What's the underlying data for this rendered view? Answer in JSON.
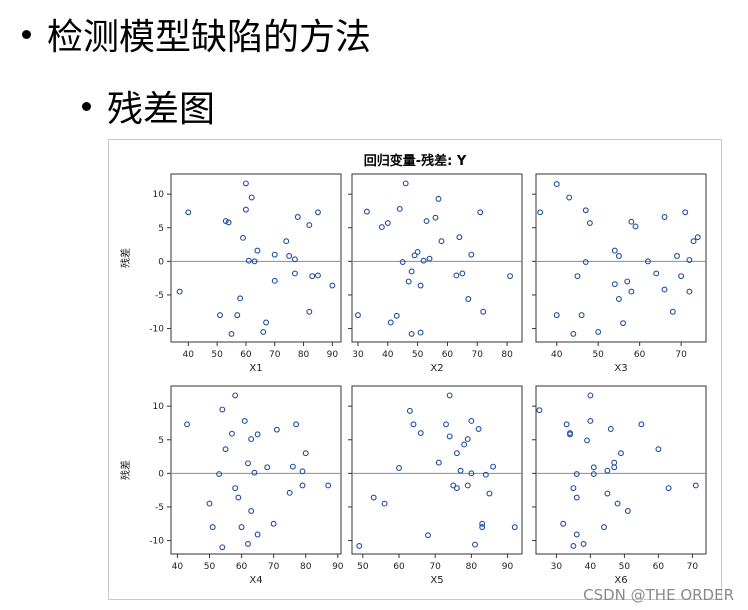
{
  "slide": {
    "bullet_1": "检测模型缺陷的方法",
    "bullet_2": "残差图"
  },
  "watermark": "CSDN @THE ORDER",
  "chart_data": {
    "type": "scatter",
    "title": "回归变量-残差: Y",
    "ylabel": "残差",
    "ylim": [
      -12,
      13
    ],
    "yticks": [
      -10,
      -5,
      0,
      5,
      10
    ],
    "reference_line_y": 0,
    "grid": false,
    "marker_color": "#1f4fa0",
    "refline_color": "#8c8c8c",
    "panels": [
      {
        "xlabel": "X1",
        "xlim": [
          34,
          93
        ],
        "xticks": [
          40,
          50,
          60,
          70,
          80,
          90
        ],
        "points": [
          [
            37,
            -4.5
          ],
          [
            40,
            7.3
          ],
          [
            51,
            -8
          ],
          [
            53,
            6
          ],
          [
            54,
            5.8
          ],
          [
            55,
            -10.8
          ],
          [
            57,
            -8
          ],
          [
            58,
            -5.5
          ],
          [
            59,
            3.5
          ],
          [
            60,
            11.6
          ],
          [
            60,
            7.7
          ],
          [
            61,
            0.1
          ],
          [
            62,
            9.5
          ],
          [
            63,
            0
          ],
          [
            64,
            1.6
          ],
          [
            66,
            -10.5
          ],
          [
            67,
            -9.1
          ],
          [
            70,
            1
          ],
          [
            70,
            -2.9
          ],
          [
            74,
            3
          ],
          [
            75,
            0.8
          ],
          [
            77,
            -1.8
          ],
          [
            77,
            0.3
          ],
          [
            78,
            6.6
          ],
          [
            82,
            5.4
          ],
          [
            83,
            -2.2
          ],
          [
            82,
            -7.5
          ],
          [
            85,
            -2.1
          ],
          [
            85,
            7.3
          ],
          [
            90,
            -3.6
          ]
        ]
      },
      {
        "xlabel": "X2",
        "xlim": [
          28,
          85
        ],
        "xticks": [
          30,
          40,
          50,
          60,
          70,
          80
        ],
        "points": [
          [
            30,
            -8
          ],
          [
            33,
            7.4
          ],
          [
            38,
            5.1
          ],
          [
            40,
            5.7
          ],
          [
            41,
            -9.1
          ],
          [
            43,
            -8.1
          ],
          [
            44,
            7.8
          ],
          [
            45,
            -0.1
          ],
          [
            46,
            11.6
          ],
          [
            47,
            -3
          ],
          [
            48,
            -10.8
          ],
          [
            48,
            -1.5
          ],
          [
            49,
            0.9
          ],
          [
            50,
            1.4
          ],
          [
            51,
            -3.6
          ],
          [
            52,
            0.1
          ],
          [
            53,
            6
          ],
          [
            54,
            0.4
          ],
          [
            56,
            6.5
          ],
          [
            57,
            9.3
          ],
          [
            58,
            3
          ],
          [
            63,
            -2.1
          ],
          [
            64,
            3.6
          ],
          [
            65,
            -1.8
          ],
          [
            67,
            -5.6
          ],
          [
            68,
            1
          ],
          [
            71,
            7.3
          ],
          [
            72,
            -7.5
          ],
          [
            81,
            -2.2
          ],
          [
            51,
            -10.6
          ]
        ]
      },
      {
        "xlabel": "X3",
        "xlim": [
          35,
          76
        ],
        "xticks": [
          40,
          50,
          60,
          70
        ],
        "points": [
          [
            36,
            7.3
          ],
          [
            40,
            11.5
          ],
          [
            40,
            -8
          ],
          [
            43,
            9.5
          ],
          [
            44,
            -10.8
          ],
          [
            45,
            -2.2
          ],
          [
            46,
            -8
          ],
          [
            47,
            7.6
          ],
          [
            47,
            -0.1
          ],
          [
            48,
            5.7
          ],
          [
            50,
            -10.5
          ],
          [
            54,
            -3.4
          ],
          [
            54,
            1.6
          ],
          [
            55,
            -5.6
          ],
          [
            55,
            0.8
          ],
          [
            56,
            -9.2
          ],
          [
            57,
            -3
          ],
          [
            58,
            5.9
          ],
          [
            59,
            5.2
          ],
          [
            62,
            0
          ],
          [
            64,
            -1.8
          ],
          [
            66,
            -4.2
          ],
          [
            66,
            6.6
          ],
          [
            68,
            -7.5
          ],
          [
            69,
            0.8
          ],
          [
            70,
            -2.2
          ],
          [
            71,
            7.3
          ],
          [
            72,
            -4.5
          ],
          [
            72,
            0.2
          ],
          [
            73,
            3
          ],
          [
            74,
            3.6
          ],
          [
            58,
            -4.5
          ]
        ]
      },
      {
        "xlabel": "X4",
        "xlim": [
          38,
          91
        ],
        "xticks": [
          40,
          50,
          60,
          70,
          80,
          90
        ],
        "points": [
          [
            43,
            7.3
          ],
          [
            50,
            -4.5
          ],
          [
            51,
            -8
          ],
          [
            53,
            -0.1
          ],
          [
            54,
            -11
          ],
          [
            54,
            9.5
          ],
          [
            55,
            3.6
          ],
          [
            57,
            5.9
          ],
          [
            58,
            11.6
          ],
          [
            58,
            -2.2
          ],
          [
            59,
            -3.6
          ],
          [
            60,
            -8
          ],
          [
            61,
            7.8
          ],
          [
            62,
            1.5
          ],
          [
            62,
            -10.5
          ],
          [
            63,
            -5.6
          ],
          [
            63,
            5.1
          ],
          [
            64,
            0.1
          ],
          [
            65,
            5.8
          ],
          [
            65,
            -9.1
          ],
          [
            68,
            0.9
          ],
          [
            70,
            -7.5
          ],
          [
            71,
            6.5
          ],
          [
            75,
            -2.9
          ],
          [
            76,
            1
          ],
          [
            77,
            7.3
          ],
          [
            79,
            0.3
          ],
          [
            79,
            -1.8
          ],
          [
            80,
            3
          ],
          [
            87,
            -1.8
          ]
        ]
      },
      {
        "xlabel": "X5",
        "xlim": [
          47,
          94
        ],
        "xticks": [
          50,
          60,
          70,
          80,
          90
        ],
        "points": [
          [
            49,
            -10.8
          ],
          [
            53,
            -3.6
          ],
          [
            56,
            -4.5
          ],
          [
            60,
            0.8
          ],
          [
            63,
            9.3
          ],
          [
            64,
            7.3
          ],
          [
            66,
            6
          ],
          [
            68,
            -9.2
          ],
          [
            71,
            1.6
          ],
          [
            73,
            7.3
          ],
          [
            74,
            11.6
          ],
          [
            74,
            5.5
          ],
          [
            75,
            -1.8
          ],
          [
            76,
            -2.2
          ],
          [
            76,
            3
          ],
          [
            77,
            0.4
          ],
          [
            78,
            4.3
          ],
          [
            79,
            -1.8
          ],
          [
            80,
            7.8
          ],
          [
            80,
            0
          ],
          [
            81,
            -10.6
          ],
          [
            82,
            6.6
          ],
          [
            83,
            -7.5
          ],
          [
            83,
            -8
          ],
          [
            84,
            -0.2
          ],
          [
            85,
            -3
          ],
          [
            86,
            1
          ],
          [
            79,
            5.1
          ],
          [
            92,
            -8
          ]
        ]
      },
      {
        "xlabel": "X6",
        "xlim": [
          24,
          74
        ],
        "xticks": [
          30,
          40,
          50,
          60,
          70
        ],
        "points": [
          [
            25,
            9.4
          ],
          [
            32,
            -7.5
          ],
          [
            33,
            7.3
          ],
          [
            34,
            5.8
          ],
          [
            34,
            6
          ],
          [
            35,
            -10.8
          ],
          [
            35,
            -2.2
          ],
          [
            36,
            -0.1
          ],
          [
            36,
            -3.6
          ],
          [
            36,
            -9.1
          ],
          [
            38,
            -10.5
          ],
          [
            39,
            4.9
          ],
          [
            40,
            11.6
          ],
          [
            40,
            7.8
          ],
          [
            41,
            -0.1
          ],
          [
            41,
            0.9
          ],
          [
            44,
            -8
          ],
          [
            45,
            -3
          ],
          [
            45,
            0.4
          ],
          [
            46,
            6.6
          ],
          [
            47,
            1.6
          ],
          [
            47,
            0.9
          ],
          [
            48,
            -4.5
          ],
          [
            49,
            3
          ],
          [
            51,
            -5.6
          ],
          [
            55,
            7.3
          ],
          [
            60,
            3.6
          ],
          [
            63,
            -2.2
          ],
          [
            71,
            -1.8
          ]
        ]
      }
    ]
  }
}
